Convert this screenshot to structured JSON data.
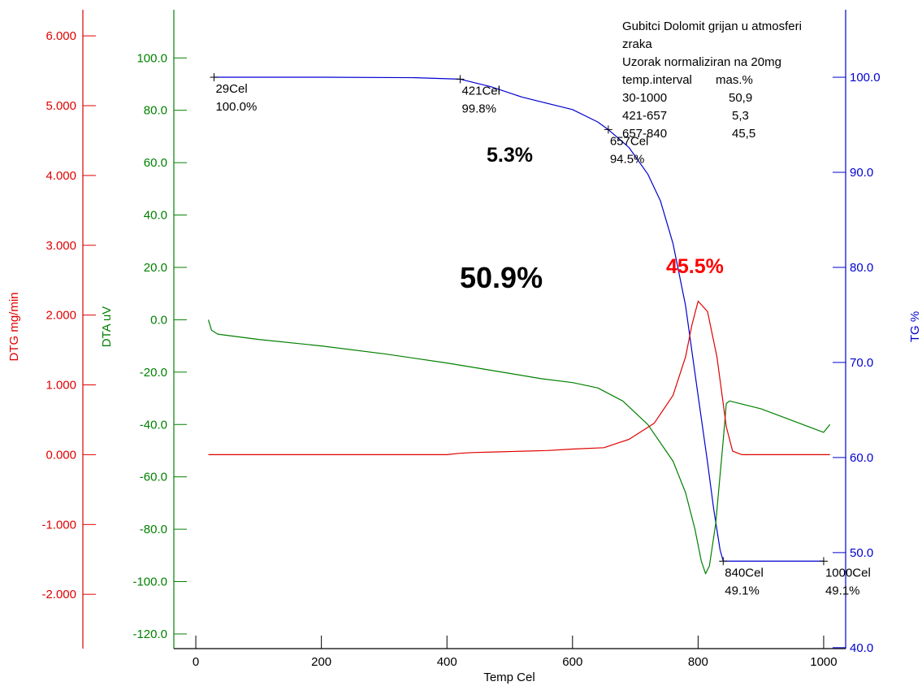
{
  "chart_data": {
    "type": "line",
    "x_axis": {
      "label": "Temp Cel",
      "ticks": [
        "0",
        "200",
        "400",
        "600",
        "800",
        "1000"
      ],
      "tick_values": [
        0,
        200,
        400,
        600,
        800,
        1000
      ],
      "range": [
        -35,
        1035
      ]
    },
    "y_axes": {
      "dtg": {
        "label": "DTG mg/min",
        "color": "#e00000",
        "ticks": [
          "6.000",
          "5.000",
          "4.000",
          "3.000",
          "2.000",
          "1.000",
          "0.000",
          "-1.000",
          "-2.000"
        ],
        "tick_values": [
          6,
          5,
          4,
          3,
          2,
          1,
          0,
          -1,
          -2
        ],
        "range": [
          -2.778,
          6.374
        ]
      },
      "dta": {
        "label": "DTA uV",
        "color": "#008000",
        "ticks": [
          "100.0",
          "80.0",
          "60.0",
          "40.0",
          "20.0",
          "0.0",
          "-20.0",
          "-40.0",
          "-60.0",
          "-80.0",
          "-100.0",
          "-120.0"
        ],
        "tick_values": [
          100,
          80,
          60,
          40,
          20,
          0,
          -20,
          -40,
          -60,
          -80,
          -100,
          -120
        ],
        "range": [
          -125.6,
          118.4
        ]
      },
      "tg": {
        "label": "TG %",
        "color": "#0000d0",
        "ticks": [
          "100.0",
          "90.0",
          "80.0",
          "70.0",
          "60.0",
          "50.0",
          "40.0"
        ],
        "tick_values": [
          100,
          90,
          80,
          70,
          60,
          50,
          40
        ],
        "range": [
          39.9,
          107.1
        ]
      }
    },
    "series": [
      {
        "key": "tg",
        "color": "#0000d0",
        "points": [
          [
            29,
            100.0
          ],
          [
            200,
            100.0
          ],
          [
            350,
            99.95
          ],
          [
            421,
            99.8
          ],
          [
            470,
            99.0
          ],
          [
            520,
            97.9
          ],
          [
            600,
            96.6
          ],
          [
            640,
            95.3
          ],
          [
            657,
            94.5
          ],
          [
            690,
            92.6
          ],
          [
            720,
            89.8
          ],
          [
            740,
            87.0
          ],
          [
            760,
            82.5
          ],
          [
            780,
            76.0
          ],
          [
            800,
            66.5
          ],
          [
            815,
            59.5
          ],
          [
            825,
            54.5
          ],
          [
            835,
            50.3
          ],
          [
            840,
            49.1
          ],
          [
            900,
            49.1
          ],
          [
            1000,
            49.1
          ]
        ]
      },
      {
        "key": "dta",
        "color": "#008000",
        "points": [
          [
            20,
            0
          ],
          [
            25,
            -4
          ],
          [
            35,
            -5.5
          ],
          [
            100,
            -7.5
          ],
          [
            200,
            -10
          ],
          [
            300,
            -13
          ],
          [
            400,
            -16.5
          ],
          [
            450,
            -18.5
          ],
          [
            500,
            -20.5
          ],
          [
            550,
            -22.5
          ],
          [
            600,
            -24
          ],
          [
            640,
            -26
          ],
          [
            680,
            -31
          ],
          [
            720,
            -40
          ],
          [
            760,
            -54
          ],
          [
            780,
            -66
          ],
          [
            795,
            -80
          ],
          [
            805,
            -92
          ],
          [
            812,
            -97
          ],
          [
            818,
            -94
          ],
          [
            828,
            -78
          ],
          [
            840,
            -46
          ],
          [
            845,
            -32
          ],
          [
            850,
            -31
          ],
          [
            900,
            -34
          ],
          [
            1000,
            -43
          ],
          [
            1010,
            -40
          ]
        ]
      },
      {
        "key": "dtg",
        "color": "#e00000",
        "points": [
          [
            20,
            0
          ],
          [
            360,
            0
          ],
          [
            400,
            0
          ],
          [
            420,
            0.02
          ],
          [
            440,
            0.03
          ],
          [
            480,
            0.04
          ],
          [
            520,
            0.05
          ],
          [
            560,
            0.06
          ],
          [
            600,
            0.08
          ],
          [
            650,
            0.1
          ],
          [
            690,
            0.22
          ],
          [
            730,
            0.45
          ],
          [
            760,
            0.85
          ],
          [
            780,
            1.4
          ],
          [
            790,
            1.85
          ],
          [
            800,
            2.2
          ],
          [
            815,
            2.05
          ],
          [
            830,
            1.4
          ],
          [
            845,
            0.4
          ],
          [
            855,
            0.05
          ],
          [
            870,
            0
          ],
          [
            1010,
            0
          ]
        ]
      }
    ],
    "point_labels": [
      {
        "temp": "29Cel",
        "pct": "100.0%",
        "x": 29,
        "y": 100.0
      },
      {
        "temp": "421Cel",
        "pct": "99.8%",
        "x": 421,
        "y": 99.8
      },
      {
        "temp": "657Cel",
        "pct": "94.5%",
        "x": 657,
        "y": 94.5
      },
      {
        "temp": "840Cel",
        "pct": "49.1%",
        "x": 840,
        "y": 49.1
      },
      {
        "temp": "1000Cel",
        "pct": "49.1%",
        "x": 1000,
        "y": 49.1
      }
    ],
    "annotations": {
      "loss_total": "50.9%",
      "loss_mid": "5.3%",
      "loss_main": "45.5%"
    },
    "info_box": {
      "line1": "Gubitci Dolomit grijan u atmosferi",
      "line2": "zraka",
      "line3": "Uzorak normaliziran na 20mg",
      "header_col1": "temp.interval",
      "header_col2": "mas.%",
      "rows": [
        {
          "interval": "30-1000",
          "mass": "50,9"
        },
        {
          "interval": "421-657",
          "mass": "5,3"
        },
        {
          "interval": "657-840",
          "mass": "45,5"
        }
      ]
    }
  }
}
